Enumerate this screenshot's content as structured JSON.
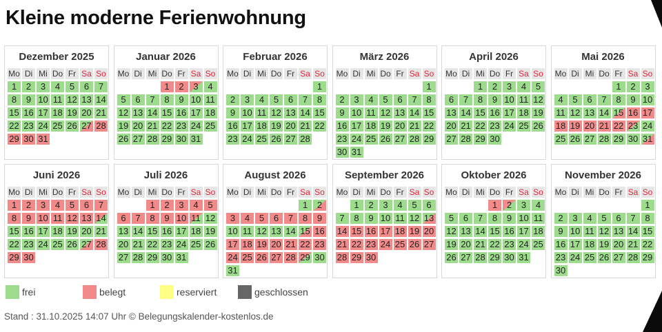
{
  "page": {
    "title": "Kleine moderne Ferienwohnung",
    "footer": "Stand : 31.10.2025 14:07 Uhr © Belegungskalender-kostenlos.de"
  },
  "weekday_headers": [
    "Mo",
    "Di",
    "Mi",
    "Do",
    "Fr",
    "Sa",
    "So"
  ],
  "colors": {
    "frei": "#9ddc8c",
    "belegt": "#f28a8a",
    "reserviert": "#ffff88",
    "geschlossen": "#666666"
  },
  "legend": [
    {
      "key": "frei",
      "label": "frei",
      "color": "#9ddc8c"
    },
    {
      "key": "belegt",
      "label": "belegt",
      "color": "#f28a8a"
    },
    {
      "key": "reserviert",
      "label": "reserviert",
      "color": "#ffff88"
    },
    {
      "key": "geschlossen",
      "label": "geschlossen",
      "color": "#666666"
    }
  ],
  "months": [
    {
      "title": "Dezember 2025",
      "start_weekday": 0,
      "days": 31,
      "status": {
        "27": "half-in",
        "28": "busy",
        "29": "busy",
        "30": "busy",
        "31": "busy"
      }
    },
    {
      "title": "Januar 2026",
      "start_weekday": 3,
      "days": 31,
      "status": {
        "1": "busy",
        "2": "busy",
        "3": "half-out"
      }
    },
    {
      "title": "Februar 2026",
      "start_weekday": 6,
      "days": 28,
      "status": {}
    },
    {
      "title": "März 2026",
      "start_weekday": 6,
      "days": 31,
      "status": {}
    },
    {
      "title": "April 2026",
      "start_weekday": 2,
      "days": 30,
      "status": {}
    },
    {
      "title": "Mai 2026",
      "start_weekday": 4,
      "days": 31,
      "status": {
        "15": "half-in",
        "16": "busy",
        "17": "busy",
        "18": "busy",
        "19": "busy",
        "20": "busy",
        "21": "busy",
        "22": "busy",
        "23": "half-out",
        "31": "half-in"
      }
    },
    {
      "title": "Juni 2026",
      "start_weekday": 0,
      "days": 30,
      "status": {
        "1": "busy",
        "2": "busy",
        "3": "busy",
        "4": "busy",
        "5": "busy",
        "6": "busy",
        "7": "busy",
        "8": "busy",
        "9": "busy",
        "10": "busy",
        "11": "busy",
        "12": "busy",
        "13": "busy",
        "14": "half-out",
        "27": "half-in",
        "28": "busy",
        "29": "busy",
        "30": "busy"
      }
    },
    {
      "title": "Juli 2026",
      "start_weekday": 2,
      "days": 31,
      "status": {
        "1": "busy",
        "2": "busy",
        "3": "busy",
        "4": "busy",
        "5": "busy",
        "6": "busy",
        "7": "busy",
        "8": "busy",
        "9": "busy",
        "10": "busy",
        "11": "half-out"
      }
    },
    {
      "title": "August 2026",
      "start_weekday": 5,
      "days": 31,
      "status": {
        "2": "half-in",
        "3": "busy",
        "4": "busy",
        "5": "busy",
        "6": "busy",
        "7": "busy",
        "8": "busy",
        "9": "busy",
        "15": "half-in",
        "16": "busy",
        "17": "busy",
        "18": "busy",
        "19": "busy",
        "20": "busy",
        "21": "busy",
        "22": "busy",
        "23": "busy",
        "24": "busy",
        "25": "busy",
        "26": "busy",
        "27": "busy",
        "28": "busy",
        "29": "half-out"
      }
    },
    {
      "title": "September 2026",
      "start_weekday": 1,
      "days": 30,
      "status": {
        "13": "half-in",
        "14": "busy",
        "15": "busy",
        "16": "busy",
        "17": "busy",
        "18": "busy",
        "19": "busy",
        "20": "busy",
        "21": "busy",
        "22": "busy",
        "23": "busy",
        "24": "busy",
        "25": "busy",
        "26": "busy",
        "27": "busy",
        "28": "busy",
        "29": "busy",
        "30": "busy"
      }
    },
    {
      "title": "Oktober 2026",
      "start_weekday": 3,
      "days": 31,
      "status": {
        "1": "busy",
        "2": "half-out"
      }
    },
    {
      "title": "November 2026",
      "start_weekday": 6,
      "days": 30,
      "status": {}
    }
  ]
}
